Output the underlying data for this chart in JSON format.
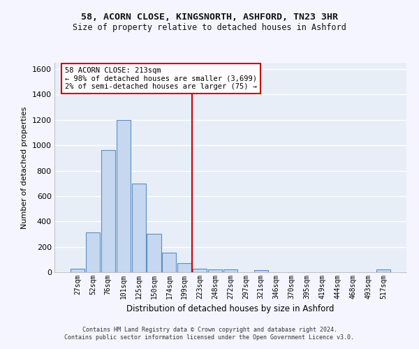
{
  "title_line1": "58, ACORN CLOSE, KINGSNORTH, ASHFORD, TN23 3HR",
  "title_line2": "Size of property relative to detached houses in Ashford",
  "xlabel": "Distribution of detached houses by size in Ashford",
  "ylabel": "Number of detached properties",
  "bar_labels": [
    "27sqm",
    "52sqm",
    "76sqm",
    "101sqm",
    "125sqm",
    "150sqm",
    "174sqm",
    "199sqm",
    "223sqm",
    "248sqm",
    "272sqm",
    "297sqm",
    "321sqm",
    "346sqm",
    "370sqm",
    "395sqm",
    "419sqm",
    "444sqm",
    "468sqm",
    "493sqm",
    "517sqm"
  ],
  "bar_values": [
    30,
    315,
    965,
    1200,
    700,
    300,
    155,
    70,
    25,
    20,
    20,
    0,
    15,
    0,
    0,
    0,
    0,
    0,
    0,
    0,
    20
  ],
  "bar_color": "#c5d8f0",
  "bar_edge_color": "#5b8ec4",
  "vline_color": "#cc0000",
  "annotation_line1": "58 ACORN CLOSE: 213sqm",
  "annotation_line2": "← 98% of detached houses are smaller (3,699)",
  "annotation_line3": "2% of semi-detached houses are larger (75) →",
  "annotation_box_color": "#ffffff",
  "annotation_box_edge_color": "#cc0000",
  "ylim": [
    0,
    1650
  ],
  "yticks": [
    0,
    200,
    400,
    600,
    800,
    1000,
    1200,
    1400,
    1600
  ],
  "background_color": "#e8eef8",
  "grid_color": "#ffffff",
  "footer_line1": "Contains HM Land Registry data © Crown copyright and database right 2024.",
  "footer_line2": "Contains public sector information licensed under the Open Government Licence v3.0."
}
